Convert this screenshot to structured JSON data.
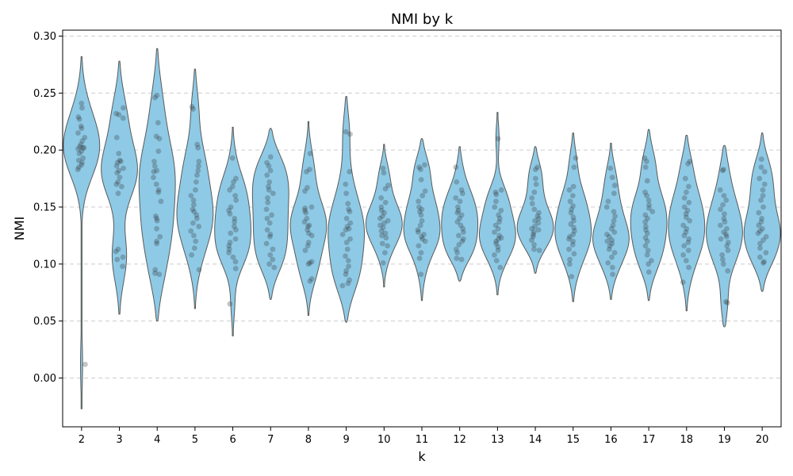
{
  "chart_data": {
    "type": "violin",
    "title": "NMI by k",
    "xlabel": "k",
    "ylabel": "NMI",
    "categories": [
      "2",
      "3",
      "4",
      "5",
      "6",
      "7",
      "8",
      "9",
      "10",
      "11",
      "12",
      "13",
      "14",
      "15",
      "16",
      "17",
      "18",
      "19",
      "20"
    ],
    "ylim": [
      -0.045,
      0.305
    ],
    "yticks": [
      0.0,
      0.05,
      0.1,
      0.15,
      0.2,
      0.25,
      0.3
    ],
    "ytick_labels": [
      "0.00",
      "0.05",
      "0.10",
      "0.15",
      "0.20",
      "0.25",
      "0.30"
    ],
    "grid": "y-dashed",
    "colors": {
      "violin_fill": "#8ecae6",
      "violin_edge": "#5a5a5a",
      "point": "#2f2f2f",
      "grid": "#cccccc"
    },
    "violins": [
      {
        "k": "2",
        "min": -0.027,
        "max": 0.282,
        "points": [
          0.241,
          0.237,
          0.229,
          0.227,
          0.221,
          0.219,
          0.215,
          0.211,
          0.208,
          0.205,
          0.203,
          0.202,
          0.202,
          0.201,
          0.199,
          0.197,
          0.193,
          0.191,
          0.189,
          0.187,
          0.185,
          0.183,
          0.012
        ]
      },
      {
        "k": "3",
        "min": 0.056,
        "max": 0.278,
        "points": [
          0.237,
          0.232,
          0.231,
          0.228,
          0.211,
          0.197,
          0.191,
          0.19,
          0.189,
          0.186,
          0.184,
          0.182,
          0.18,
          0.176,
          0.172,
          0.17,
          0.168,
          0.162,
          0.113,
          0.111,
          0.106,
          0.104,
          0.098
        ]
      },
      {
        "k": "4",
        "min": 0.05,
        "max": 0.289,
        "points": [
          0.248,
          0.246,
          0.224,
          0.212,
          0.21,
          0.199,
          0.19,
          0.186,
          0.182,
          0.181,
          0.176,
          0.17,
          0.165,
          0.163,
          0.155,
          0.142,
          0.14,
          0.138,
          0.131,
          0.124,
          0.12,
          0.118,
          0.095,
          0.092,
          0.091
        ]
      },
      {
        "k": "5",
        "min": 0.061,
        "max": 0.271,
        "points": [
          0.238,
          0.236,
          0.205,
          0.202,
          0.19,
          0.186,
          0.182,
          0.178,
          0.172,
          0.165,
          0.16,
          0.156,
          0.152,
          0.148,
          0.146,
          0.143,
          0.14,
          0.136,
          0.133,
          0.129,
          0.125,
          0.12,
          0.114,
          0.108,
          0.095
        ]
      },
      {
        "k": "6",
        "min": 0.037,
        "max": 0.22,
        "points": [
          0.193,
          0.175,
          0.172,
          0.168,
          0.165,
          0.16,
          0.156,
          0.15,
          0.147,
          0.144,
          0.14,
          0.137,
          0.133,
          0.13,
          0.127,
          0.122,
          0.119,
          0.116,
          0.113,
          0.11,
          0.106,
          0.102,
          0.096,
          0.065
        ]
      },
      {
        "k": "7",
        "min": 0.069,
        "max": 0.219,
        "points": [
          0.194,
          0.189,
          0.186,
          0.182,
          0.178,
          0.172,
          0.168,
          0.165,
          0.162,
          0.158,
          0.154,
          0.148,
          0.143,
          0.14,
          0.136,
          0.13,
          0.126,
          0.124,
          0.118,
          0.113,
          0.108,
          0.104,
          0.1,
          0.097
        ]
      },
      {
        "k": "8",
        "min": 0.055,
        "max": 0.225,
        "points": [
          0.197,
          0.183,
          0.181,
          0.167,
          0.164,
          0.15,
          0.149,
          0.147,
          0.145,
          0.14,
          0.137,
          0.134,
          0.133,
          0.13,
          0.127,
          0.125,
          0.119,
          0.116,
          0.112,
          0.102,
          0.101,
          0.1,
          0.087,
          0.085
        ]
      },
      {
        "k": "9",
        "min": 0.049,
        "max": 0.247,
        "points": [
          0.216,
          0.214,
          0.181,
          0.17,
          0.162,
          0.153,
          0.148,
          0.146,
          0.14,
          0.136,
          0.133,
          0.131,
          0.13,
          0.126,
          0.122,
          0.119,
          0.113,
          0.107,
          0.103,
          0.098,
          0.094,
          0.091,
          0.086,
          0.083,
          0.081
        ]
      },
      {
        "k": "10",
        "min": 0.08,
        "max": 0.205,
        "points": [
          0.184,
          0.18,
          0.169,
          0.166,
          0.158,
          0.154,
          0.15,
          0.147,
          0.145,
          0.142,
          0.14,
          0.138,
          0.136,
          0.134,
          0.132,
          0.129,
          0.127,
          0.125,
          0.123,
          0.118,
          0.116,
          0.11,
          0.101
        ]
      },
      {
        "k": "11",
        "min": 0.068,
        "max": 0.21,
        "points": [
          0.187,
          0.185,
          0.183,
          0.174,
          0.164,
          0.16,
          0.155,
          0.15,
          0.148,
          0.146,
          0.143,
          0.138,
          0.134,
          0.13,
          0.128,
          0.126,
          0.124,
          0.122,
          0.12,
          0.116,
          0.11,
          0.105,
          0.091
        ]
      },
      {
        "k": "12",
        "min": 0.085,
        "max": 0.203,
        "points": [
          0.185,
          0.172,
          0.165,
          0.162,
          0.158,
          0.155,
          0.15,
          0.147,
          0.145,
          0.143,
          0.14,
          0.137,
          0.134,
          0.131,
          0.128,
          0.125,
          0.122,
          0.12,
          0.117,
          0.113,
          0.11,
          0.105,
          0.104
        ]
      },
      {
        "k": "13",
        "min": 0.073,
        "max": 0.233,
        "points": [
          0.21,
          0.165,
          0.163,
          0.161,
          0.155,
          0.15,
          0.147,
          0.143,
          0.14,
          0.137,
          0.134,
          0.131,
          0.128,
          0.125,
          0.123,
          0.122,
          0.12,
          0.118,
          0.115,
          0.112,
          0.108,
          0.103,
          0.097
        ]
      },
      {
        "k": "14",
        "min": 0.092,
        "max": 0.203,
        "points": [
          0.185,
          0.183,
          0.175,
          0.17,
          0.163,
          0.158,
          0.153,
          0.148,
          0.145,
          0.142,
          0.14,
          0.138,
          0.136,
          0.133,
          0.131,
          0.13,
          0.128,
          0.126,
          0.124,
          0.121,
          0.117,
          0.113,
          0.112
        ]
      },
      {
        "k": "15",
        "min": 0.067,
        "max": 0.215,
        "points": [
          0.193,
          0.185,
          0.168,
          0.165,
          0.16,
          0.155,
          0.151,
          0.148,
          0.145,
          0.141,
          0.138,
          0.135,
          0.132,
          0.129,
          0.126,
          0.124,
          0.122,
          0.12,
          0.117,
          0.113,
          0.109,
          0.104,
          0.1,
          0.089
        ]
      },
      {
        "k": "16",
        "min": 0.069,
        "max": 0.206,
        "points": [
          0.184,
          0.176,
          0.169,
          0.162,
          0.155,
          0.15,
          0.146,
          0.142,
          0.138,
          0.134,
          0.131,
          0.128,
          0.126,
          0.124,
          0.121,
          0.12,
          0.118,
          0.116,
          0.113,
          0.11,
          0.106,
          0.101,
          0.097,
          0.091
        ]
      },
      {
        "k": "17",
        "min": 0.068,
        "max": 0.218,
        "points": [
          0.193,
          0.19,
          0.185,
          0.173,
          0.163,
          0.16,
          0.156,
          0.152,
          0.149,
          0.146,
          0.143,
          0.14,
          0.137,
          0.133,
          0.13,
          0.127,
          0.123,
          0.12,
          0.116,
          0.112,
          0.108,
          0.103,
          0.1,
          0.093
        ]
      },
      {
        "k": "18",
        "min": 0.059,
        "max": 0.213,
        "points": [
          0.19,
          0.188,
          0.175,
          0.168,
          0.163,
          0.158,
          0.154,
          0.15,
          0.147,
          0.144,
          0.141,
          0.138,
          0.134,
          0.131,
          0.128,
          0.125,
          0.122,
          0.119,
          0.116,
          0.112,
          0.108,
          0.103,
          0.097,
          0.084
        ]
      },
      {
        "k": "19",
        "min": 0.045,
        "max": 0.204,
        "points": [
          0.183,
          0.182,
          0.165,
          0.16,
          0.156,
          0.152,
          0.148,
          0.144,
          0.14,
          0.137,
          0.134,
          0.131,
          0.128,
          0.126,
          0.124,
          0.122,
          0.119,
          0.116,
          0.112,
          0.108,
          0.104,
          0.1,
          0.094,
          0.067,
          0.066
        ]
      },
      {
        "k": "20",
        "min": 0.076,
        "max": 0.215,
        "points": [
          0.192,
          0.185,
          0.181,
          0.175,
          0.17,
          0.165,
          0.16,
          0.156,
          0.15,
          0.145,
          0.14,
          0.137,
          0.134,
          0.131,
          0.129,
          0.127,
          0.124,
          0.121,
          0.118,
          0.114,
          0.11,
          0.106,
          0.102,
          0.101
        ]
      }
    ]
  }
}
